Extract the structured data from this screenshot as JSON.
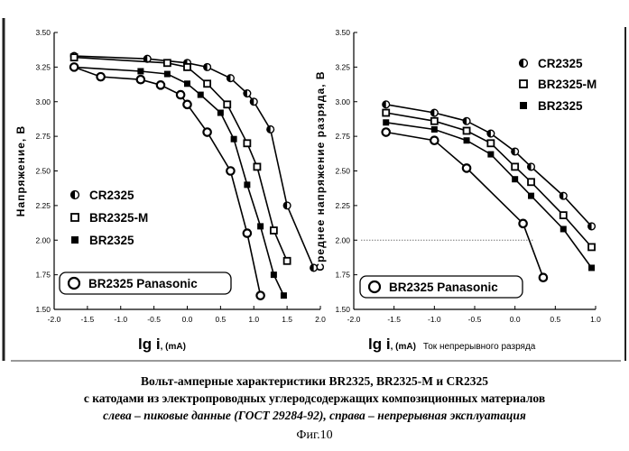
{
  "chart_data": [
    {
      "type": "line",
      "title": "",
      "ylabel": "Напряжение, В",
      "xlabel_main": "lg i",
      "xlabel_unit": ", (mA)",
      "xlim": [
        -2.0,
        2.0
      ],
      "ylim": [
        1.5,
        3.5
      ],
      "x_ticks": [
        "-2.0",
        "-1.5",
        "-1.0",
        "-0.5",
        "0.0",
        "0.5",
        "1.0",
        "1.5",
        "2.0"
      ],
      "y_ticks": [
        "1.50",
        "1.75",
        "2.00",
        "2.25",
        "2.50",
        "2.75",
        "3.00",
        "3.25",
        "3.50"
      ],
      "grid": false,
      "legend_position": "lower-left",
      "series": [
        {
          "name": "CR2325",
          "marker": "half-circle",
          "x": [
            -1.7,
            -0.6,
            0.0,
            0.3,
            0.65,
            0.9,
            1.0,
            1.25,
            1.5,
            1.9
          ],
          "y": [
            3.33,
            3.31,
            3.28,
            3.25,
            3.17,
            3.06,
            3.0,
            2.8,
            2.25,
            1.8
          ]
        },
        {
          "name": "BR2325-M",
          "marker": "open-square",
          "x": [
            -1.7,
            -0.3,
            0.0,
            0.3,
            0.6,
            0.9,
            1.05,
            1.3,
            1.5
          ],
          "y": [
            3.32,
            3.28,
            3.25,
            3.13,
            2.98,
            2.7,
            2.53,
            2.07,
            1.85
          ]
        },
        {
          "name": "BR2325",
          "marker": "filled-square",
          "x": [
            -1.7,
            -0.7,
            -0.3,
            0.0,
            0.2,
            0.5,
            0.7,
            0.9,
            1.1,
            1.3,
            1.45
          ],
          "y": [
            3.25,
            3.22,
            3.2,
            3.13,
            3.05,
            2.92,
            2.73,
            2.4,
            2.1,
            1.75,
            1.6
          ]
        },
        {
          "name": "BR2325  Panasonic",
          "marker": "open-circle",
          "x": [
            -1.7,
            -1.3,
            -0.7,
            -0.4,
            -0.1,
            0.0,
            0.3,
            0.65,
            0.9,
            1.1
          ],
          "y": [
            3.25,
            3.18,
            3.16,
            3.12,
            3.05,
            2.98,
            2.78,
            2.5,
            2.05,
            1.6
          ]
        }
      ]
    },
    {
      "type": "line",
      "title": "",
      "ylabel": "Среднее напряжение разряда, В",
      "xlabel_main": "lg i",
      "xlabel_unit": ", (mA)",
      "xlabel_extra": "Ток непрерывного разряда",
      "xlim": [
        -2.0,
        1.0
      ],
      "ylim": [
        1.5,
        3.5
      ],
      "x_ticks": [
        "-2.0",
        "-1.5",
        "-1.0",
        "-0.5",
        "0.0",
        "0.5",
        "1.0"
      ],
      "y_ticks": [
        "1.50",
        "1.75",
        "2.00",
        "2.25",
        "2.50",
        "2.75",
        "3.00",
        "3.25",
        "3.50"
      ],
      "reference_line_y": 2.0,
      "grid": false,
      "legend_position": "top-right",
      "series": [
        {
          "name": "CR2325",
          "marker": "half-circle",
          "x": [
            -1.6,
            -1.0,
            -0.6,
            -0.3,
            0.0,
            0.2,
            0.6,
            0.95
          ],
          "y": [
            2.98,
            2.92,
            2.86,
            2.77,
            2.64,
            2.53,
            2.32,
            2.1
          ]
        },
        {
          "name": "BR2325-M",
          "marker": "open-square",
          "x": [
            -1.6,
            -1.0,
            -0.6,
            -0.3,
            0.0,
            0.2,
            0.6,
            0.95
          ],
          "y": [
            2.92,
            2.86,
            2.79,
            2.7,
            2.53,
            2.42,
            2.18,
            1.95
          ]
        },
        {
          "name": "BR2325",
          "marker": "filled-square",
          "x": [
            -1.6,
            -1.0,
            -0.6,
            -0.3,
            0.0,
            0.2,
            0.6,
            0.95
          ],
          "y": [
            2.85,
            2.8,
            2.72,
            2.62,
            2.44,
            2.32,
            2.08,
            1.8
          ]
        },
        {
          "name": "BR2325  Panasonic",
          "marker": "open-circle",
          "x": [
            -1.6,
            -1.0,
            -0.6,
            0.1,
            0.35
          ],
          "y": [
            2.78,
            2.72,
            2.52,
            2.12,
            1.73
          ]
        }
      ]
    }
  ],
  "caption": {
    "line1": "Вольт-амперные характеристики BR2325, BR2325-M и CR2325",
    "line2": "с катодами из электропроводных углеродсодержащих композиционных материалов",
    "line3": "слева – пиковые данные (ГОСТ 29284-92), справа – непрерывная эксплуатация",
    "figure_label": "Фиг.10"
  }
}
